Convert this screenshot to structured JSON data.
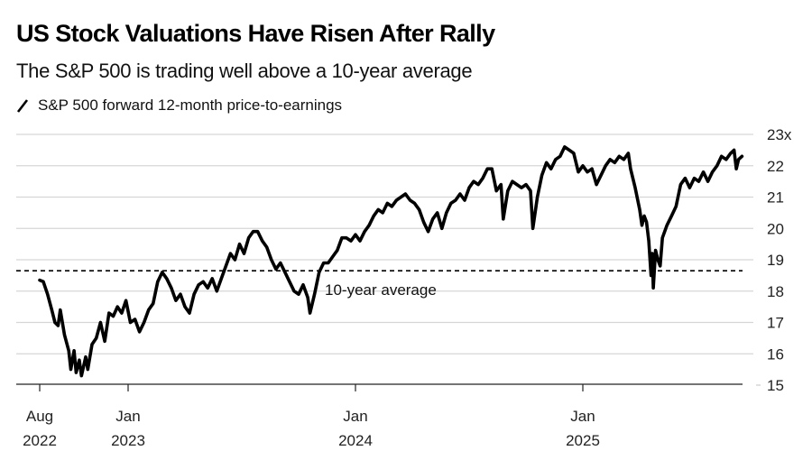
{
  "header": {
    "title": "US Stock Valuations Have Risen After Rally",
    "subtitle": "The S&P 500 is trading well above a 10-year average"
  },
  "chart_data": {
    "type": "line",
    "title": "US Stock Valuations Have Risen After Rally",
    "subtitle": "The S&P 500 is trading well above a 10-year average",
    "xlabel": "",
    "ylabel": "",
    "ylim": [
      15,
      23
    ],
    "y_ticks": [
      {
        "value": 23,
        "label": "23x"
      },
      {
        "value": 22,
        "label": "22"
      },
      {
        "value": 21,
        "label": "21"
      },
      {
        "value": 20,
        "label": "20"
      },
      {
        "value": 19,
        "label": "19"
      },
      {
        "value": 18,
        "label": "18"
      },
      {
        "value": 17,
        "label": "17"
      },
      {
        "value": 16,
        "label": "16"
      },
      {
        "value": 15,
        "label": "15"
      }
    ],
    "x_ticks": [
      {
        "date": 2022.583,
        "month": "Aug",
        "year": "2022"
      },
      {
        "date": 2023.0,
        "month": "Jan",
        "year": "2023"
      },
      {
        "date": 2024.0,
        "month": "Jan",
        "year": "2024"
      },
      {
        "date": 2025.0,
        "month": "Jan",
        "year": "2025"
      }
    ],
    "xlim": [
      2022.583,
      2025.7
    ],
    "grid": true,
    "legend": {
      "position": "top-left",
      "entries": [
        {
          "name": "S&P 500 forward 12-month price-to-earnings",
          "color": "#000000"
        }
      ]
    },
    "reference_line": {
      "name": "10-year average",
      "value": 18.65,
      "style": "dashed",
      "label": "10-year average"
    },
    "series": [
      {
        "name": "S&P 500 forward 12-month price-to-earnings",
        "color": "#000000",
        "points": [
          [
            2022.583,
            18.35
          ],
          [
            2022.6,
            18.3
          ],
          [
            2022.62,
            17.9
          ],
          [
            2022.64,
            17.4
          ],
          [
            2022.655,
            17.0
          ],
          [
            2022.67,
            16.9
          ],
          [
            2022.68,
            17.4
          ],
          [
            2022.7,
            16.6
          ],
          [
            2022.72,
            16.1
          ],
          [
            2022.73,
            15.5
          ],
          [
            2022.745,
            16.1
          ],
          [
            2022.755,
            15.4
          ],
          [
            2022.77,
            15.8
          ],
          [
            2022.78,
            15.3
          ],
          [
            2022.8,
            15.9
          ],
          [
            2022.81,
            15.5
          ],
          [
            2022.83,
            16.3
          ],
          [
            2022.85,
            16.5
          ],
          [
            2022.87,
            17.0
          ],
          [
            2022.89,
            16.4
          ],
          [
            2022.91,
            17.3
          ],
          [
            2022.93,
            17.2
          ],
          [
            2022.95,
            17.5
          ],
          [
            2022.97,
            17.3
          ],
          [
            2022.99,
            17.7
          ],
          [
            2023.01,
            17.0
          ],
          [
            2023.03,
            17.1
          ],
          [
            2023.05,
            16.7
          ],
          [
            2023.07,
            17.0
          ],
          [
            2023.09,
            17.4
          ],
          [
            2023.11,
            17.6
          ],
          [
            2023.13,
            18.3
          ],
          [
            2023.15,
            18.6
          ],
          [
            2023.17,
            18.4
          ],
          [
            2023.19,
            18.1
          ],
          [
            2023.21,
            17.7
          ],
          [
            2023.23,
            17.9
          ],
          [
            2023.25,
            17.5
          ],
          [
            2023.27,
            17.3
          ],
          [
            2023.29,
            17.9
          ],
          [
            2023.31,
            18.2
          ],
          [
            2023.33,
            18.3
          ],
          [
            2023.35,
            18.1
          ],
          [
            2023.37,
            18.4
          ],
          [
            2023.39,
            18.0
          ],
          [
            2023.41,
            18.4
          ],
          [
            2023.43,
            18.8
          ],
          [
            2023.45,
            19.2
          ],
          [
            2023.47,
            19.0
          ],
          [
            2023.49,
            19.5
          ],
          [
            2023.51,
            19.2
          ],
          [
            2023.53,
            19.7
          ],
          [
            2023.55,
            19.9
          ],
          [
            2023.57,
            19.9
          ],
          [
            2023.59,
            19.6
          ],
          [
            2023.61,
            19.4
          ],
          [
            2023.63,
            19.0
          ],
          [
            2023.65,
            18.7
          ],
          [
            2023.67,
            18.9
          ],
          [
            2023.69,
            18.6
          ],
          [
            2023.71,
            18.3
          ],
          [
            2023.73,
            18.0
          ],
          [
            2023.75,
            17.9
          ],
          [
            2023.77,
            18.2
          ],
          [
            2023.79,
            17.8
          ],
          [
            2023.8,
            17.3
          ],
          [
            2023.82,
            17.9
          ],
          [
            2023.84,
            18.6
          ],
          [
            2023.86,
            18.9
          ],
          [
            2023.88,
            18.9
          ],
          [
            2023.9,
            19.1
          ],
          [
            2023.92,
            19.3
          ],
          [
            2023.94,
            19.7
          ],
          [
            2023.96,
            19.7
          ],
          [
            2023.98,
            19.6
          ],
          [
            2024.0,
            19.8
          ],
          [
            2024.02,
            19.6
          ],
          [
            2024.04,
            19.9
          ],
          [
            2024.06,
            20.1
          ],
          [
            2024.08,
            20.4
          ],
          [
            2024.1,
            20.6
          ],
          [
            2024.12,
            20.5
          ],
          [
            2024.14,
            20.8
          ],
          [
            2024.16,
            20.7
          ],
          [
            2024.18,
            20.9
          ],
          [
            2024.2,
            21.0
          ],
          [
            2024.22,
            21.1
          ],
          [
            2024.24,
            20.9
          ],
          [
            2024.26,
            20.8
          ],
          [
            2024.28,
            20.6
          ],
          [
            2024.3,
            20.2
          ],
          [
            2024.32,
            19.9
          ],
          [
            2024.34,
            20.3
          ],
          [
            2024.36,
            20.5
          ],
          [
            2024.38,
            20.0
          ],
          [
            2024.4,
            20.5
          ],
          [
            2024.42,
            20.8
          ],
          [
            2024.44,
            20.9
          ],
          [
            2024.46,
            21.1
          ],
          [
            2024.48,
            20.9
          ],
          [
            2024.5,
            21.3
          ],
          [
            2024.52,
            21.5
          ],
          [
            2024.54,
            21.4
          ],
          [
            2024.56,
            21.6
          ],
          [
            2024.58,
            21.9
          ],
          [
            2024.6,
            21.9
          ],
          [
            2024.62,
            21.2
          ],
          [
            2024.64,
            21.4
          ],
          [
            2024.65,
            20.3
          ],
          [
            2024.67,
            21.2
          ],
          [
            2024.69,
            21.5
          ],
          [
            2024.71,
            21.4
          ],
          [
            2024.73,
            21.3
          ],
          [
            2024.75,
            21.4
          ],
          [
            2024.77,
            21.2
          ],
          [
            2024.78,
            20.0
          ],
          [
            2024.8,
            21.0
          ],
          [
            2024.82,
            21.7
          ],
          [
            2024.84,
            22.1
          ],
          [
            2024.86,
            21.9
          ],
          [
            2024.88,
            22.2
          ],
          [
            2024.9,
            22.3
          ],
          [
            2024.92,
            22.6
          ],
          [
            2024.94,
            22.5
          ],
          [
            2024.96,
            22.4
          ],
          [
            2024.98,
            21.8
          ],
          [
            2025.0,
            22.0
          ],
          [
            2025.02,
            21.8
          ],
          [
            2025.04,
            21.9
          ],
          [
            2025.06,
            21.4
          ],
          [
            2025.08,
            21.7
          ],
          [
            2025.1,
            22.0
          ],
          [
            2025.12,
            22.2
          ],
          [
            2025.14,
            22.1
          ],
          [
            2025.16,
            22.3
          ],
          [
            2025.18,
            22.2
          ],
          [
            2025.2,
            22.4
          ],
          [
            2025.21,
            21.9
          ],
          [
            2025.23,
            21.3
          ],
          [
            2025.25,
            20.6
          ],
          [
            2025.26,
            20.1
          ],
          [
            2025.27,
            20.4
          ],
          [
            2025.28,
            20.2
          ],
          [
            2025.29,
            19.6
          ],
          [
            2025.3,
            18.5
          ],
          [
            2025.305,
            19.2
          ],
          [
            2025.31,
            18.1
          ],
          [
            2025.32,
            19.3
          ],
          [
            2025.33,
            19.0
          ],
          [
            2025.34,
            18.8
          ],
          [
            2025.35,
            19.7
          ],
          [
            2025.37,
            20.1
          ],
          [
            2025.39,
            20.4
          ],
          [
            2025.41,
            20.7
          ],
          [
            2025.43,
            21.4
          ],
          [
            2025.45,
            21.6
          ],
          [
            2025.47,
            21.3
          ],
          [
            2025.49,
            21.6
          ],
          [
            2025.51,
            21.5
          ],
          [
            2025.53,
            21.8
          ],
          [
            2025.55,
            21.5
          ],
          [
            2025.57,
            21.8
          ],
          [
            2025.59,
            22.0
          ],
          [
            2025.61,
            22.3
          ],
          [
            2025.63,
            22.2
          ],
          [
            2025.65,
            22.4
          ],
          [
            2025.665,
            22.5
          ],
          [
            2025.675,
            21.9
          ],
          [
            2025.685,
            22.2
          ],
          [
            2025.7,
            22.3
          ]
        ]
      }
    ]
  }
}
